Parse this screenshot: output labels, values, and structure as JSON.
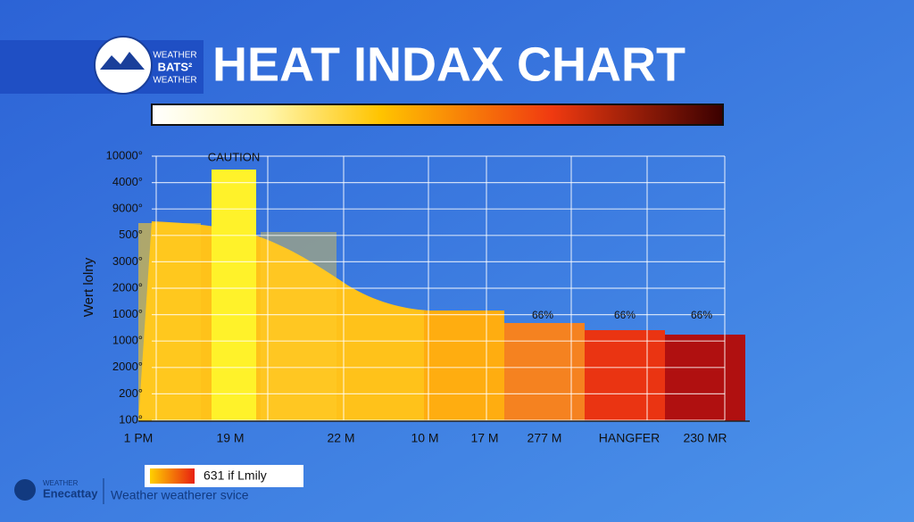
{
  "header": {
    "logo": [
      "WEATHER",
      "BATS²",
      "WEATHER"
    ],
    "title": "HEAT INDAX CHART"
  },
  "chart": {
    "caution_label": "CAUTION",
    "y_axis_title": "Wert lolny",
    "y_labels": [
      "10000°",
      "4000°",
      "9000°",
      "500°",
      "3000°",
      "2000°",
      "1000°",
      "1000°",
      "2000°",
      "200°",
      "100°"
    ],
    "x_labels": [
      "1 PM",
      "19 M",
      "22 M",
      "10 M",
      "17 M",
      "277 M",
      "HANGFER",
      "230 MR"
    ],
    "bar_labels": [
      "66%",
      "66%",
      "66%"
    ]
  },
  "legend": {
    "text": "631 if Lmily"
  },
  "footer": {
    "logo": [
      "WEATHER",
      "Enecattay"
    ],
    "service": "Weather weatherer svice"
  }
}
